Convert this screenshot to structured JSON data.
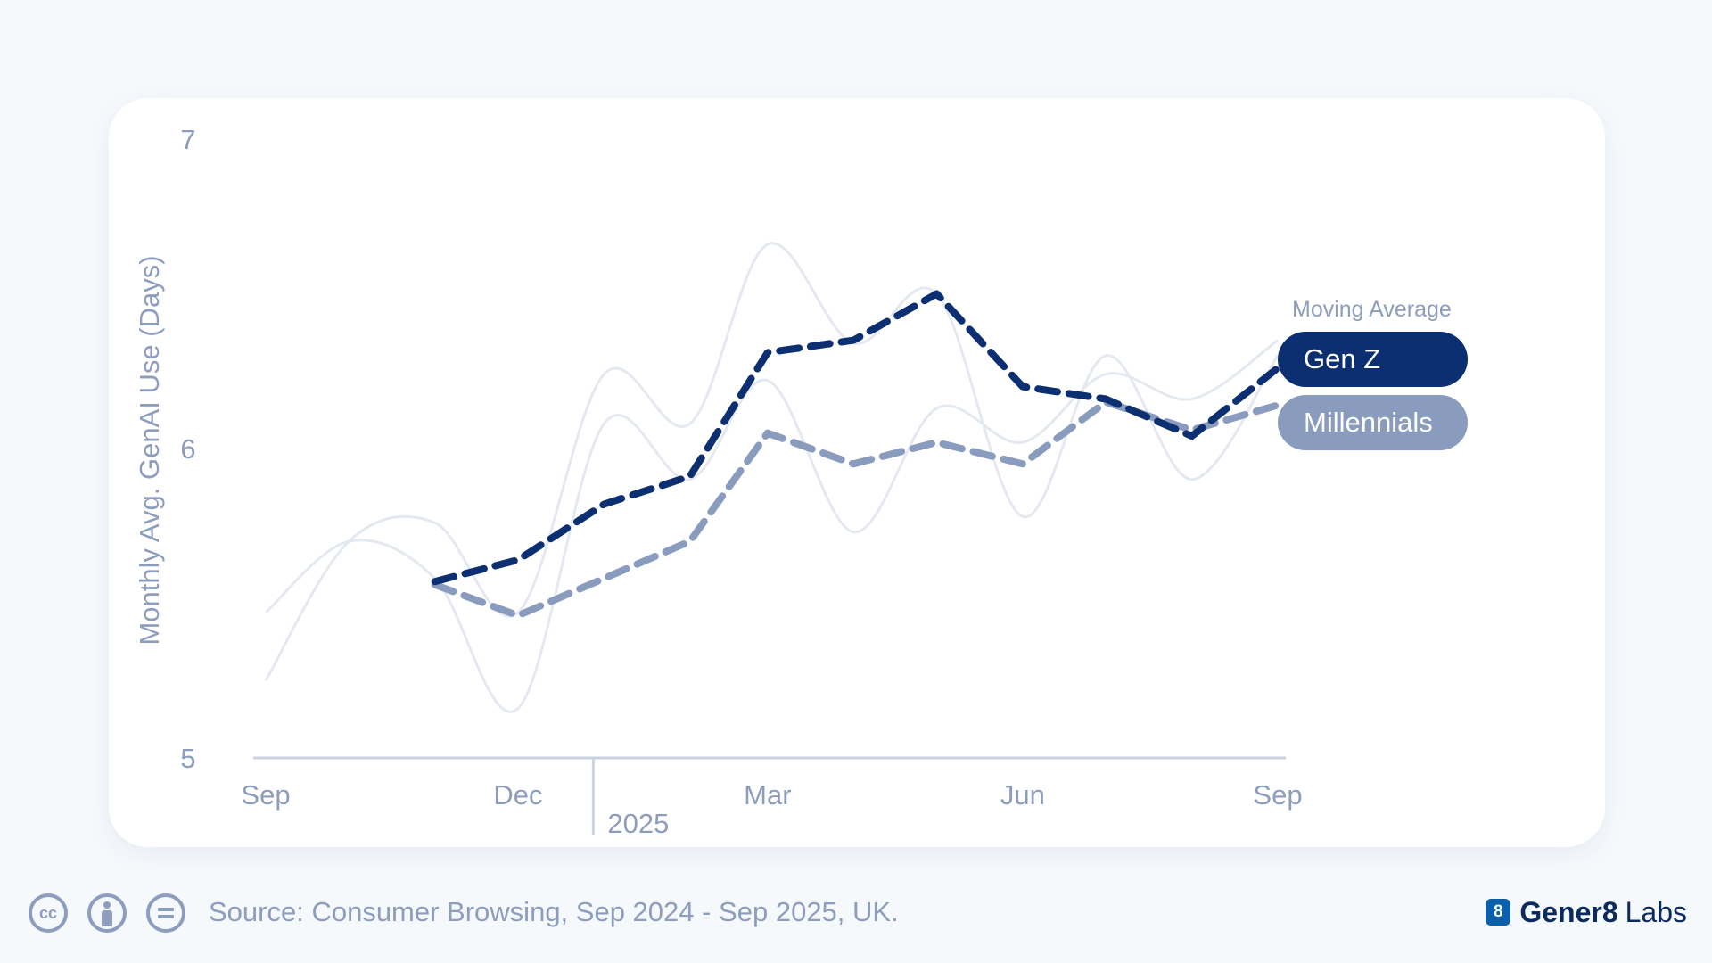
{
  "chart_data": {
    "type": "line",
    "ylabel": "Monthly Avg. GenAI Use (Days)",
    "xlabel": "",
    "ylim": [
      5,
      7
    ],
    "y_ticks": [
      "5",
      "6",
      "7"
    ],
    "x_ticks": [
      "Sep",
      "Dec",
      "Mar",
      "Jun",
      "Sep"
    ],
    "year_marker": {
      "label": "2025",
      "x": "2025-01-01"
    },
    "x_range": [
      "2024-09-01",
      "2025-09-01"
    ],
    "grid": false,
    "legend": {
      "title": "Moving Average",
      "position": "right"
    },
    "series": [
      {
        "name": "Gen Z",
        "style": "moving-average",
        "color": "#0b2f70",
        "x": [
          "2024-11-01",
          "2024-12-01",
          "2025-01-01",
          "2025-02-01",
          "2025-03-01",
          "2025-04-01",
          "2025-05-01",
          "2025-06-01",
          "2025-07-01",
          "2025-08-01",
          "2025-09-01"
        ],
        "values": [
          5.57,
          5.64,
          5.82,
          5.91,
          6.31,
          6.35,
          6.5,
          6.2,
          6.16,
          6.04,
          6.26
        ]
      },
      {
        "name": "Millennials",
        "style": "moving-average",
        "color": "#8a9cbe",
        "x": [
          "2024-11-01",
          "2024-12-01",
          "2025-01-01",
          "2025-02-01",
          "2025-03-01",
          "2025-04-01",
          "2025-05-01",
          "2025-06-01",
          "2025-07-01",
          "2025-08-01",
          "2025-09-01"
        ],
        "values": [
          5.56,
          5.46,
          5.58,
          5.7,
          6.05,
          5.95,
          6.02,
          5.95,
          6.15,
          6.06,
          6.14
        ]
      },
      {
        "style": "monthly",
        "color": "#e4e9f1",
        "x": [
          "2024-09-01",
          "2024-10-01",
          "2024-11-01",
          "2024-12-01",
          "2025-01-01",
          "2025-02-01",
          "2025-03-01",
          "2025-04-01",
          "2025-05-01",
          "2025-06-01",
          "2025-07-01",
          "2025-08-01",
          "2025-09-01"
        ],
        "values": [
          5.25,
          5.7,
          5.76,
          5.47,
          6.24,
          6.08,
          6.66,
          6.34,
          6.5,
          5.78,
          6.3,
          5.9,
          6.3
        ]
      },
      {
        "style": "monthly",
        "color": "#e4e9f1",
        "x": [
          "2024-09-01",
          "2024-10-01",
          "2024-11-01",
          "2024-12-01",
          "2025-01-01",
          "2025-02-01",
          "2025-03-01",
          "2025-04-01",
          "2025-05-01",
          "2025-06-01",
          "2025-07-01",
          "2025-08-01",
          "2025-09-01"
        ],
        "values": [
          5.47,
          5.7,
          5.58,
          5.16,
          6.08,
          5.9,
          6.22,
          5.73,
          6.13,
          6.02,
          6.24,
          6.16,
          6.35
        ]
      }
    ]
  },
  "footer": {
    "cc_label": "cc",
    "source": "Source: Consumer Browsing, Sep 2024 - Sep 2025, UK.",
    "logo_badge": "8",
    "logo_strong": "Gener8",
    "logo_light": "Labs"
  }
}
